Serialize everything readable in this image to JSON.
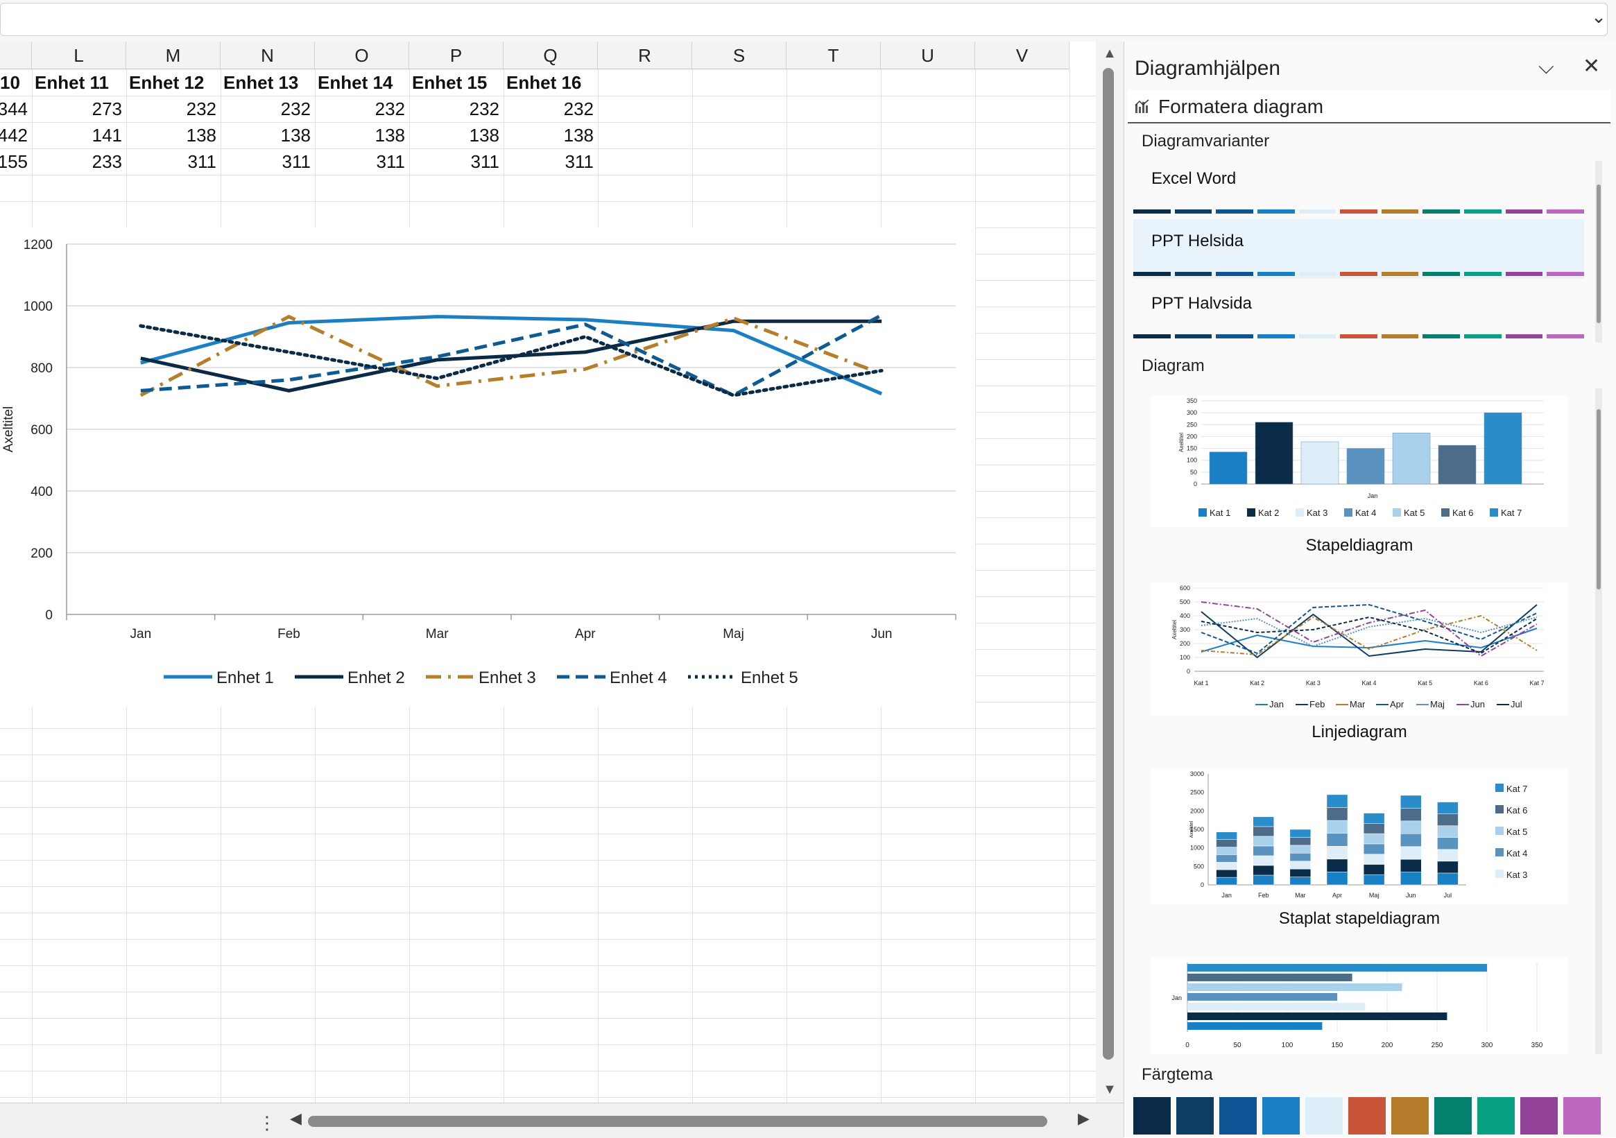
{
  "columns": [
    "L",
    "M",
    "N",
    "O",
    "P",
    "Q",
    "R",
    "S",
    "T",
    "U",
    "V"
  ],
  "table": {
    "header": [
      "10",
      "Enhet 11",
      "Enhet 12",
      "Enhet 13",
      "Enhet 14",
      "Enhet 15",
      "Enhet 16"
    ],
    "rows": [
      [
        "344",
        "273",
        "232",
        "232",
        "232",
        "232",
        "232"
      ],
      [
        "442",
        "141",
        "138",
        "138",
        "138",
        "138",
        "138"
      ],
      [
        "155",
        "233",
        "311",
        "311",
        "311",
        "311",
        "311"
      ]
    ]
  },
  "chart_data": {
    "type": "line",
    "ylabel": "Axeltitel",
    "ylim": [
      0,
      1200
    ],
    "yticks": [
      "0",
      "200",
      "400",
      "600",
      "800",
      "1000",
      "1200"
    ],
    "categories": [
      "Jan",
      "Feb",
      "Mar",
      "Apr",
      "Maj",
      "Jun"
    ],
    "grid": true,
    "legend": "bottom",
    "series": [
      {
        "name": "Enhet 1",
        "color": "#1c7fc1",
        "dash": "solid",
        "values": [
          815,
          945,
          965,
          955,
          920,
          715
        ]
      },
      {
        "name": "Enhet 2",
        "color": "#0b2a45",
        "dash": "solid",
        "values": [
          830,
          725,
          825,
          850,
          950,
          950
        ]
      },
      {
        "name": "Enhet 3",
        "color": "#b47e2a",
        "dash": "dashdot",
        "values": [
          710,
          965,
          740,
          795,
          960,
          780
        ]
      },
      {
        "name": "Enhet 4",
        "color": "#0e5a93",
        "dash": "dash",
        "values": [
          725,
          760,
          835,
          940,
          710,
          970
        ]
      },
      {
        "name": "Enhet 5",
        "color": "#0b2a45",
        "dash": "dot",
        "values": [
          935,
          850,
          765,
          900,
          710,
          790
        ]
      }
    ]
  },
  "pane": {
    "title": "Diagramhjälpen",
    "format_label": "Formatera diagram",
    "variants_label": "Diagramvarianter",
    "variants": [
      {
        "name": "Excel Word"
      },
      {
        "name": "PPT Helsida"
      },
      {
        "name": "PPT Halvsida"
      }
    ],
    "diagram_label": "Diagram",
    "palette": [
      "#0a2c48",
      "#0e3d63",
      "#0f5596",
      "#1a80c6",
      "#deeef8",
      "#c8543a",
      "#b57c2b",
      "#05806f",
      "#06a283",
      "#93439a",
      "#bd68c0"
    ],
    "charts": [
      {
        "label": "Stapeldiagram"
      },
      {
        "label": "Linjediagram"
      },
      {
        "label": "Staplat stapeldiagram"
      }
    ],
    "theme_label": "Färgtema",
    "bar_thumb": {
      "yticks": [
        "0",
        "50",
        "100",
        "150",
        "200",
        "250",
        "300",
        "350"
      ],
      "ylabel": "Axeltitel",
      "xlabel": "Jan",
      "legend": [
        "Kat 1",
        "Kat 2",
        "Kat 3",
        "Kat 4",
        "Kat 5",
        "Kat 6",
        "Kat 7"
      ],
      "values": [
        135,
        260,
        178,
        150,
        215,
        163,
        300
      ]
    },
    "line_thumb": {
      "yticks": [
        "0",
        "100",
        "200",
        "300",
        "400",
        "500",
        "600"
      ],
      "ylabel": "Axeltitel",
      "categories": [
        "Kat 1",
        "Kat 2",
        "Kat 3",
        "Kat 4",
        "Kat 5",
        "Kat 6",
        "Kat 7"
      ],
      "legend": [
        "Jan",
        "Feb",
        "Mar",
        "Apr",
        "Maj",
        "Jun",
        "Jul"
      ]
    },
    "stacked_thumb": {
      "yticks": [
        "0",
        "500",
        "1000",
        "1500",
        "2000",
        "2500",
        "3000"
      ],
      "ylabel": "Axeltitel",
      "categories": [
        "Jan",
        "Feb",
        "Mar",
        "Apr",
        "Maj",
        "Jun",
        "Jul"
      ],
      "legend": [
        "Kat 7",
        "Kat 6",
        "Kat 5",
        "Kat 4",
        "Kat 3"
      ],
      "totals": [
        1430,
        1840,
        1500,
        2440,
        1940,
        2420,
        2240
      ]
    },
    "hbar_thumb": {
      "xticks": [
        "0",
        "50",
        "100",
        "150",
        "200",
        "250",
        "300",
        "350"
      ],
      "ylabel": "Jan",
      "values": [
        300,
        165,
        215,
        150,
        178,
        260,
        135
      ]
    }
  }
}
